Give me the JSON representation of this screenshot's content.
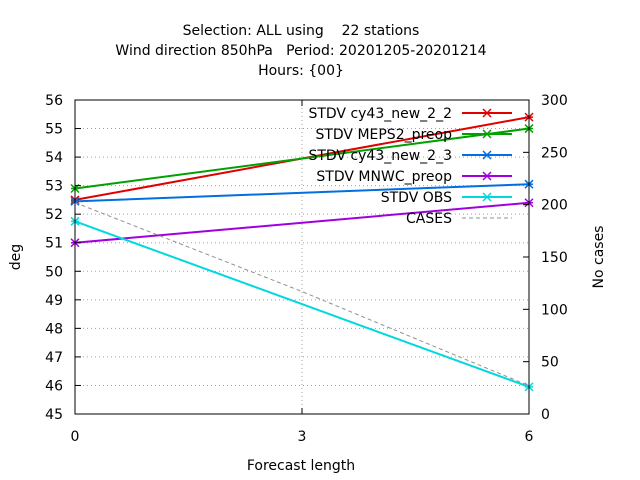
{
  "chart_data": {
    "type": "line",
    "title_lines": [
      "Selection: ALL using    22 stations",
      "Wind direction 850hPa   Period: 20201205-20201214",
      "Hours: {00}"
    ],
    "xlabel": "Forecast length",
    "ylabel": "deg",
    "y2label": "No cases",
    "x": [
      0,
      3,
      6
    ],
    "xticks": [
      0,
      3,
      6
    ],
    "xlim": [
      0,
      6
    ],
    "ylim": [
      45,
      56
    ],
    "yticks": [
      45,
      46,
      47,
      48,
      49,
      50,
      51,
      52,
      53,
      54,
      55,
      56
    ],
    "y2lim": [
      0,
      300
    ],
    "y2ticks": [
      0,
      50,
      100,
      150,
      200,
      250,
      300
    ],
    "grid": true,
    "legend_position": "top-right",
    "series": [
      {
        "name": "STDV cy43_new_2_2",
        "color": "#e00000",
        "axis": "y",
        "x": [
          0,
          6
        ],
        "values": [
          52.5,
          55.4
        ]
      },
      {
        "name": "STDV MEPS2_preop",
        "color": "#00a000",
        "axis": "y",
        "x": [
          0,
          6
        ],
        "values": [
          52.9,
          55.0
        ]
      },
      {
        "name": "STDV cy43_new_2_3",
        "color": "#0070e0",
        "axis": "y",
        "x": [
          0,
          6
        ],
        "values": [
          52.45,
          53.05
        ]
      },
      {
        "name": "STDV MNWC_preop",
        "color": "#a000e0",
        "axis": "y",
        "x": [
          0,
          6
        ],
        "values": [
          51.0,
          52.4
        ]
      },
      {
        "name": "STDV OBS",
        "color": "#00d8e0",
        "axis": "y",
        "x": [
          0,
          6
        ],
        "values": [
          51.75,
          45.95
        ]
      },
      {
        "name": "CASES",
        "color": "#909090",
        "axis": "y2",
        "dashed": true,
        "x": [
          0,
          3,
          6
        ],
        "values": [
          202,
          117,
          27
        ]
      }
    ]
  }
}
